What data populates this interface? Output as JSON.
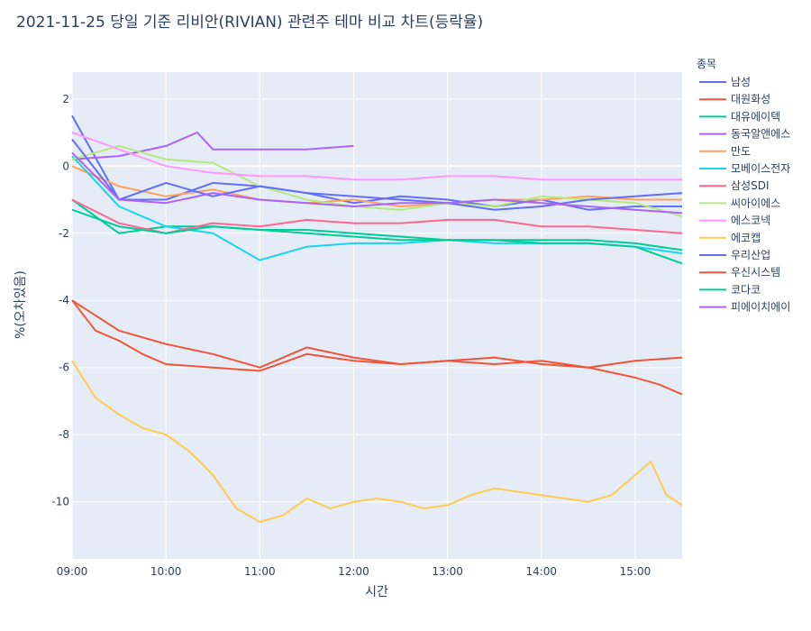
{
  "chart_data": {
    "type": "line",
    "title": "2021-11-25 당일 기준 리비안(RIVIAN) 관련주 테마 비교 차트(등락율)",
    "xlabel": "시간",
    "ylabel": "%(오차있음)",
    "legend_title": "종목",
    "legend_position": "right",
    "grid": true,
    "background": "#e5ecf6",
    "x_ticks": [
      "09:00",
      "10:00",
      "11:00",
      "12:00",
      "13:00",
      "14:00",
      "15:00"
    ],
    "x_range": [
      "09:00",
      "15:30"
    ],
    "y_ticks": [
      2,
      0,
      -2,
      -4,
      -6,
      -8,
      -10
    ],
    "ylim": [
      -11.7,
      2.8
    ],
    "series": [
      {
        "name": "남성",
        "color": "#636efa",
        "x": [
          "09:00",
          "09:30",
          "10:00",
          "10:30",
          "11:00",
          "11:30",
          "12:00",
          "12:30",
          "13:00",
          "13:30",
          "14:00",
          "14:30",
          "15:00",
          "15:30"
        ],
        "y": [
          1.5,
          -1.0,
          -1.0,
          -0.5,
          -0.6,
          -0.8,
          -1.1,
          -0.9,
          -1.0,
          -1.2,
          -1.0,
          -1.3,
          -1.2,
          -1.2
        ]
      },
      {
        "name": "대원화성",
        "color": "#ef553b",
        "x": [
          "09:00",
          "09:30",
          "10:00",
          "10:30",
          "11:00",
          "11:30",
          "12:00",
          "12:30",
          "13:00",
          "13:30",
          "14:00",
          "14:30",
          "15:00",
          "15:30"
        ],
        "y": [
          -4.0,
          -4.9,
          -5.3,
          -5.6,
          -6.0,
          -5.4,
          -5.7,
          -5.9,
          -5.8,
          -5.7,
          -5.9,
          -6.0,
          -5.8,
          -5.7
        ]
      },
      {
        "name": "대유에이텍",
        "color": "#00cc96",
        "x": [
          "09:00",
          "09:30",
          "10:00",
          "10:30",
          "11:00",
          "11:30",
          "12:00",
          "12:30",
          "13:00",
          "13:30",
          "14:00",
          "14:30",
          "15:00",
          "15:30"
        ],
        "y": [
          -1.0,
          -2.0,
          -1.8,
          -1.8,
          -1.9,
          -1.9,
          -2.0,
          -2.1,
          -2.2,
          -2.2,
          -2.2,
          -2.2,
          -2.3,
          -2.5
        ]
      },
      {
        "name": "동국알앤에스",
        "color": "#ab63fa",
        "x": [
          "09:00",
          "09:30",
          "10:00",
          "10:20",
          "10:30",
          "11:00",
          "11:30",
          "12:00"
        ],
        "y": [
          0.2,
          0.3,
          0.6,
          1.0,
          0.5,
          0.5,
          0.5,
          0.6
        ]
      },
      {
        "name": "만도",
        "color": "#ffa15a",
        "x": [
          "09:00",
          "09:30",
          "10:00",
          "10:30",
          "11:00",
          "11:30",
          "12:00",
          "12:30",
          "13:00",
          "13:30",
          "14:00",
          "14:30",
          "15:00",
          "15:30"
        ],
        "y": [
          0.0,
          -0.6,
          -0.9,
          -0.7,
          -1.0,
          -1.1,
          -1.0,
          -1.2,
          -1.1,
          -1.0,
          -1.0,
          -0.9,
          -1.0,
          -1.0
        ]
      },
      {
        "name": "모베이스전자",
        "color": "#19d3f3",
        "x": [
          "09:00",
          "09:30",
          "10:00",
          "10:30",
          "11:00",
          "11:30",
          "12:00",
          "12:30",
          "13:00",
          "13:30",
          "14:00",
          "14:30",
          "15:00",
          "15:30"
        ],
        "y": [
          0.3,
          -1.2,
          -1.8,
          -2.0,
          -2.8,
          -2.4,
          -2.3,
          -2.3,
          -2.2,
          -2.3,
          -2.3,
          -2.3,
          -2.4,
          -2.6
        ]
      },
      {
        "name": "삼성SDI",
        "color": "#ff6692",
        "x": [
          "09:00",
          "09:30",
          "10:00",
          "10:30",
          "11:00",
          "11:30",
          "12:00",
          "12:30",
          "13:00",
          "13:30",
          "14:00",
          "14:30",
          "15:00",
          "15:30"
        ],
        "y": [
          -1.0,
          -1.7,
          -2.0,
          -1.7,
          -1.8,
          -1.6,
          -1.7,
          -1.7,
          -1.6,
          -1.6,
          -1.8,
          -1.8,
          -1.9,
          -2.0
        ]
      },
      {
        "name": "씨아이에스",
        "color": "#b6e880",
        "x": [
          "09:00",
          "09:30",
          "10:00",
          "10:30",
          "11:00",
          "11:30",
          "12:00",
          "12:30",
          "13:00",
          "13:30",
          "14:00",
          "14:30",
          "15:00",
          "15:30"
        ],
        "y": [
          0.2,
          0.6,
          0.2,
          0.1,
          -0.6,
          -1.0,
          -1.2,
          -1.3,
          -1.1,
          -1.2,
          -0.9,
          -1.0,
          -1.1,
          -1.5
        ]
      },
      {
        "name": "에스코넥",
        "color": "#ff97ff",
        "x": [
          "09:00",
          "09:30",
          "10:00",
          "10:30",
          "11:00",
          "11:30",
          "12:00",
          "12:30",
          "13:00",
          "13:30",
          "14:00",
          "14:30",
          "15:00",
          "15:30"
        ],
        "y": [
          1.0,
          0.5,
          0.0,
          -0.2,
          -0.3,
          -0.3,
          -0.4,
          -0.4,
          -0.3,
          -0.3,
          -0.4,
          -0.4,
          -0.4,
          -0.4
        ]
      },
      {
        "name": "에코캡",
        "color": "#fecb52",
        "x": [
          "09:00",
          "09:15",
          "09:30",
          "09:45",
          "10:00",
          "10:15",
          "10:30",
          "10:45",
          "11:00",
          "11:15",
          "11:30",
          "11:45",
          "12:00",
          "12:15",
          "12:30",
          "12:45",
          "13:00",
          "13:15",
          "13:30",
          "13:45",
          "14:00",
          "14:15",
          "14:30",
          "14:45",
          "15:00",
          "15:10",
          "15:20",
          "15:30"
        ],
        "y": [
          -5.8,
          -6.9,
          -7.4,
          -7.8,
          -8.0,
          -8.5,
          -9.2,
          -10.2,
          -10.6,
          -10.4,
          -9.9,
          -10.2,
          -10.0,
          -9.9,
          -10.0,
          -10.2,
          -10.1,
          -9.8,
          -9.6,
          -9.7,
          -9.8,
          -9.9,
          -10.0,
          -9.8,
          -9.2,
          -8.8,
          -9.8,
          -10.1
        ]
      },
      {
        "name": "우리산업",
        "color": "#636efa",
        "x": [
          "09:00",
          "09:30",
          "10:00",
          "10:30",
          "11:00",
          "11:30",
          "12:00",
          "12:30",
          "13:00",
          "13:30",
          "14:00",
          "14:30",
          "15:00",
          "15:30"
        ],
        "y": [
          0.8,
          -1.0,
          -0.5,
          -0.9,
          -0.6,
          -0.8,
          -0.9,
          -1.0,
          -1.1,
          -1.3,
          -1.2,
          -1.0,
          -0.9,
          -0.8
        ]
      },
      {
        "name": "우신시스템",
        "color": "#ef553b",
        "x": [
          "09:00",
          "09:15",
          "09:30",
          "09:45",
          "10:00",
          "10:30",
          "11:00",
          "11:30",
          "12:00",
          "12:30",
          "13:00",
          "13:30",
          "14:00",
          "14:30",
          "15:00",
          "15:15",
          "15:30"
        ],
        "y": [
          -4.0,
          -4.9,
          -5.2,
          -5.6,
          -5.9,
          -6.0,
          -6.1,
          -5.6,
          -5.8,
          -5.9,
          -5.8,
          -5.9,
          -5.8,
          -6.0,
          -6.3,
          -6.5,
          -6.8
        ]
      },
      {
        "name": "코다코",
        "color": "#00cc96",
        "x": [
          "09:00",
          "09:30",
          "10:00",
          "10:30",
          "11:00",
          "11:30",
          "12:00",
          "12:30",
          "13:00",
          "13:30",
          "14:00",
          "14:30",
          "15:00",
          "15:30"
        ],
        "y": [
          -1.3,
          -1.8,
          -2.0,
          -1.8,
          -1.9,
          -2.0,
          -2.1,
          -2.2,
          -2.2,
          -2.2,
          -2.3,
          -2.3,
          -2.4,
          -2.9
        ]
      },
      {
        "name": "피에이치에이",
        "color": "#ab63fa",
        "x": [
          "09:00",
          "09:30",
          "10:00",
          "10:30",
          "11:00",
          "11:30",
          "12:00",
          "12:30",
          "13:00",
          "13:30",
          "14:00",
          "14:30",
          "15:00",
          "15:30"
        ],
        "y": [
          0.4,
          -1.0,
          -1.1,
          -0.8,
          -1.0,
          -1.1,
          -1.2,
          -1.1,
          -1.1,
          -1.0,
          -1.1,
          -1.2,
          -1.3,
          -1.4
        ]
      }
    ]
  }
}
